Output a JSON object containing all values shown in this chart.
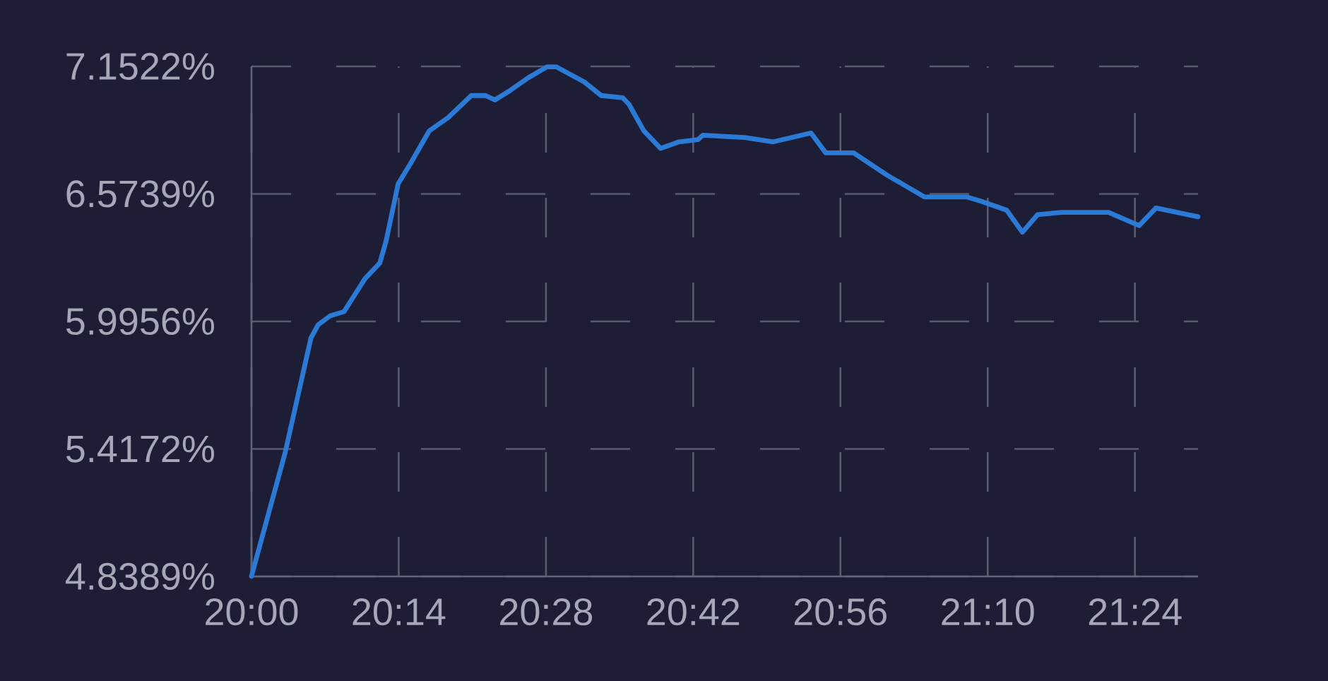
{
  "chart_data": {
    "type": "line",
    "x": [
      20.0,
      20.0533,
      20.0942,
      20.1055,
      20.1242,
      20.1467,
      20.18,
      20.2033,
      20.2133,
      20.2325,
      20.2517,
      20.2817,
      20.3117,
      20.3483,
      20.3708,
      20.3858,
      20.4083,
      20.4383,
      20.4683,
      20.4833,
      20.5283,
      20.5542,
      20.5883,
      20.5983,
      20.6217,
      20.6483,
      20.6775,
      20.7075,
      20.715,
      20.7817,
      20.8267,
      20.8867,
      20.91,
      20.9542,
      21.0067,
      21.0667,
      21.1333,
      21.1567,
      21.1967,
      21.2217,
      21.2458,
      21.2833,
      21.3583,
      21.4067,
      21.4333,
      21.5
    ],
    "values": [
      4.84,
      5.4,
      5.92,
      5.98,
      6.02,
      6.04,
      6.19,
      6.26,
      6.36,
      6.62,
      6.71,
      6.86,
      6.92,
      7.02,
      7.02,
      7.0,
      7.04,
      7.1,
      7.15,
      7.15,
      7.08,
      7.02,
      7.01,
      6.98,
      6.86,
      6.78,
      6.81,
      6.82,
      6.84,
      6.83,
      6.81,
      6.85,
      6.76,
      6.76,
      6.66,
      6.56,
      6.56,
      6.54,
      6.5,
      6.4,
      6.48,
      6.49,
      6.49,
      6.43,
      6.51,
      6.47
    ],
    "color": "#2b7ad6",
    "xlim": [
      20.0,
      21.5
    ],
    "xticks": [
      {
        "value": 20.0,
        "label": "20:00"
      },
      {
        "value": 20.2333,
        "label": "20:14"
      },
      {
        "value": 20.4667,
        "label": "20:28"
      },
      {
        "value": 20.7,
        "label": "20:42"
      },
      {
        "value": 20.9333,
        "label": "20:56"
      },
      {
        "value": 21.1667,
        "label": "21:10"
      },
      {
        "value": 21.4,
        "label": "21:24"
      }
    ],
    "ylim": [
      4.8389,
      7.1522
    ],
    "yticks": [
      {
        "value": 4.8389,
        "label": "4.8389%"
      },
      {
        "value": 5.4172,
        "label": "5.4172%"
      },
      {
        "value": 5.9956,
        "label": "5.9956%"
      },
      {
        "value": 6.5739,
        "label": "6.5739%"
      },
      {
        "value": 7.1522,
        "label": "7.1522%"
      }
    ],
    "grid": true
  }
}
